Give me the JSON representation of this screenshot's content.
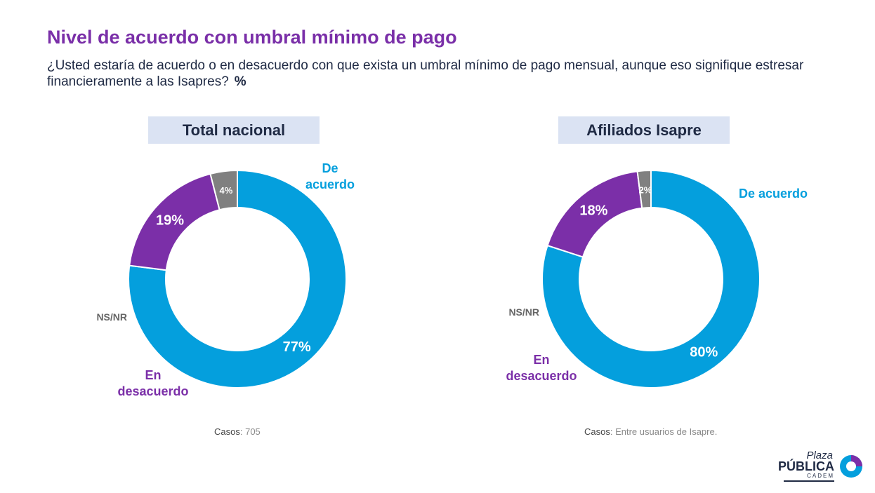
{
  "header": {
    "title": "Nivel de acuerdo con umbral mínimo de pago",
    "subtitle": "¿Usted estaría de acuerdo o en desacuerdo con que exista un umbral mínimo de pago mensual, aunque eso signifique estresar financieramente a las Isapres?",
    "unit": "%"
  },
  "colors": {
    "acuerdo": "#049fdd",
    "desacuerdo": "#7b2fa8",
    "nsnr": "#808080",
    "panel_bg": "#dbe3f3"
  },
  "chart_data": [
    {
      "type": "pie",
      "title": "Total nacional",
      "series": [
        {
          "name": "De acuerdo",
          "label": "77%",
          "value": 77
        },
        {
          "name": "En desacuerdo",
          "label": "19%",
          "value": 19
        },
        {
          "name": "NS/NR",
          "label": "4%",
          "value": 4
        }
      ],
      "casos_label": "Casos",
      "casos_value": ": 705"
    },
    {
      "type": "pie",
      "title": "Afiliados Isapre",
      "series": [
        {
          "name": "De acuerdo",
          "label": "80%",
          "value": 80
        },
        {
          "name": "En desacuerdo",
          "label": "18%",
          "value": 18
        },
        {
          "name": "NS/NR",
          "label": "2%",
          "value": 2
        }
      ],
      "casos_label": "Casos",
      "casos_value": ": Entre usuarios de Isapre."
    }
  ],
  "logo": {
    "line1": "Plaza",
    "line2": "PÚBLICA",
    "line3": "CADEM"
  }
}
